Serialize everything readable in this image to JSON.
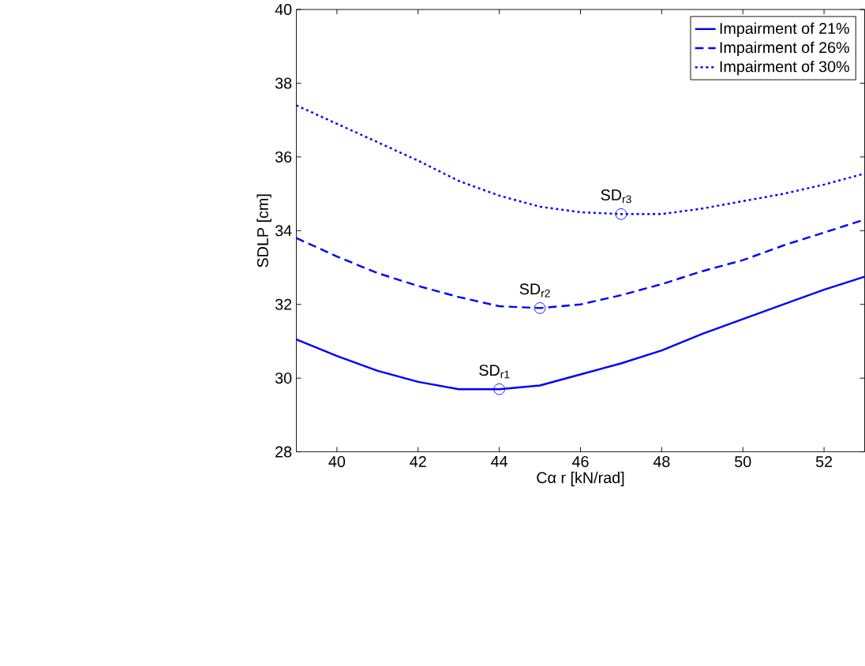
{
  "chart_data": {
    "type": "line",
    "xlabel": "Cα r [kN/rad]",
    "ylabel": "SDLP [cm]",
    "x": [
      39,
      40,
      41,
      42,
      43,
      44,
      45,
      46,
      47,
      48,
      49,
      50,
      51,
      52,
      53
    ],
    "series": [
      {
        "name": "Impairment of 21%",
        "color": "#0000ff",
        "line_style": "solid",
        "values": [
          31.05,
          30.6,
          30.2,
          29.9,
          29.7,
          29.7,
          29.8,
          30.1,
          30.4,
          30.75,
          31.2,
          31.6,
          32.0,
          32.4,
          32.75
        ]
      },
      {
        "name": "Impairment of 26%",
        "color": "#0000ff",
        "line_style": "dashed",
        "values": [
          33.8,
          33.3,
          32.85,
          32.5,
          32.2,
          31.95,
          31.9,
          32.0,
          32.25,
          32.55,
          32.9,
          33.2,
          33.6,
          33.95,
          34.3
        ]
      },
      {
        "name": "Impairment of 30%",
        "color": "#0000ff",
        "line_style": "dotted",
        "values": [
          37.4,
          36.9,
          36.4,
          35.9,
          35.35,
          34.95,
          34.65,
          34.5,
          34.45,
          34.45,
          34.6,
          34.8,
          35.0,
          35.25,
          35.55
        ]
      }
    ],
    "annotations": [
      {
        "text": "SD$_{r1}$",
        "x": 44,
        "y": 29.7
      },
      {
        "text": "SD$_{r2}$",
        "x": 45,
        "y": 31.9
      },
      {
        "text": "SD$_{r3}$",
        "x": 47,
        "y": 34.45
      }
    ],
    "xlim": [
      39,
      53
    ],
    "ylim": [
      28,
      40
    ],
    "xticks": [
      40,
      42,
      44,
      46,
      48,
      50,
      52
    ],
    "yticks": [
      28,
      30,
      32,
      34,
      36,
      38,
      40
    ],
    "grid": false,
    "legend": "top right",
    "marker": "none"
  }
}
